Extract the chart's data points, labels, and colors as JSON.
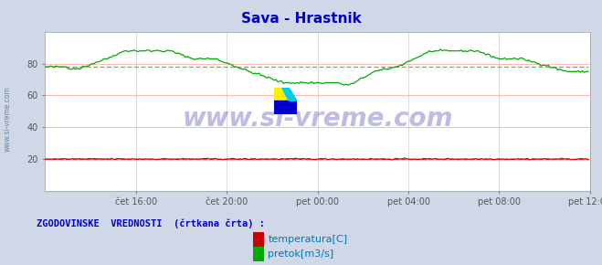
{
  "title": "Sava - Hrastnik",
  "title_color": "#0000cc",
  "bg_color": "#d0d8e8",
  "plot_bg_color": "#ffffff",
  "grid_color_h": "#ffaaaa",
  "grid_color_v": "#cccccc",
  "watermark": "www.si-vreme.com",
  "watermark_color": "#2222aa",
  "xlabel_ticks": [
    "čet 16:00",
    "čet 20:00",
    "pet 00:00",
    "pet 04:00",
    "pet 08:00",
    "pet 12:00"
  ],
  "yticks": [
    20,
    40,
    60,
    80
  ],
  "ylim": [
    0,
    100
  ],
  "xlim": [
    0,
    288
  ],
  "temp_color": "#dd0000",
  "flow_color": "#00aa00",
  "hist_temp_color": "#dd4444",
  "hist_flow_color": "#44cc44",
  "legend_title": "ZGODOVINSKE  VREDNOSTI  (črtkana črta) :",
  "legend_title_color": "#0000cc",
  "legend_items": [
    "temperatura[C]",
    "pretok[m3/s]"
  ],
  "legend_colors": [
    "#cc0000",
    "#00aa00"
  ],
  "left_label": "www.si-vreme.com",
  "left_label_color": "#6688aa",
  "tick_x_positions": [
    48,
    96,
    144,
    192,
    240,
    288
  ],
  "n_points": 288
}
